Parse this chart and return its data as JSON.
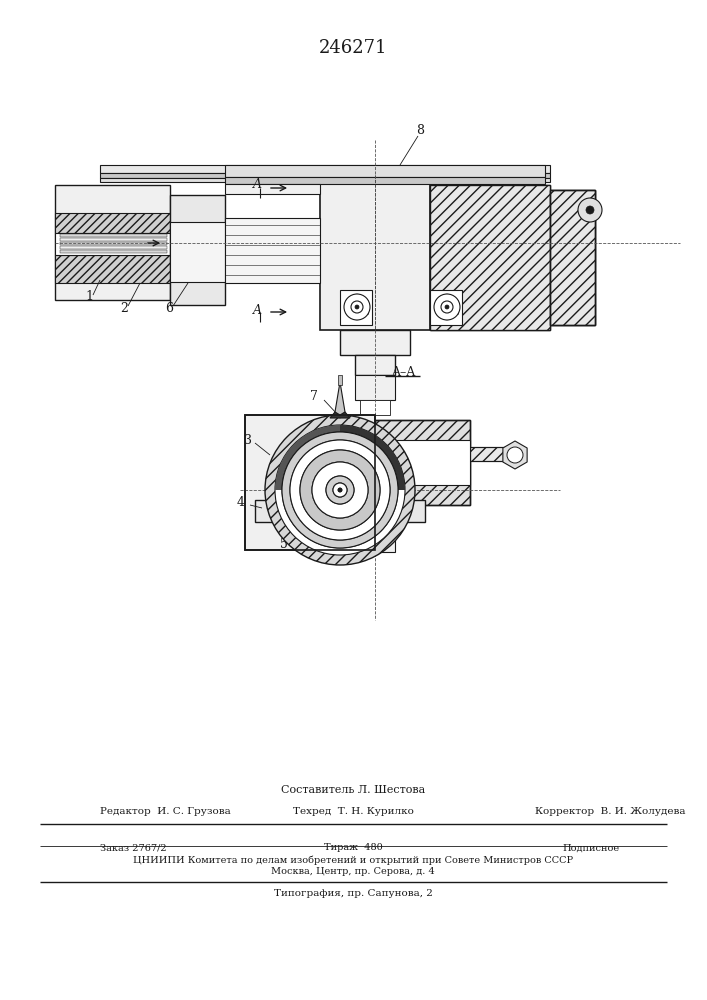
{
  "patent_number": "246271",
  "background_color": "#ffffff",
  "footer_texts": {
    "composer": "Составитель Л. Шестова",
    "editor": "Редактор  И. С. Грузова",
    "techred": "Техред  Т. Н. Курилко",
    "corrector": "Корректор  В. И. Жолудева",
    "order": "Заказ 2767/2",
    "tirazh": "Тираж  480",
    "podpisnoe": "Подписное",
    "tsniipi": "ЦНИИПИ Комитета по делам изобретений и открытий при Совете Министров СССР",
    "address": "Москва, Центр, пр. Серова, д. 4",
    "typography": "Типография, пр. Сапунова, 2"
  }
}
